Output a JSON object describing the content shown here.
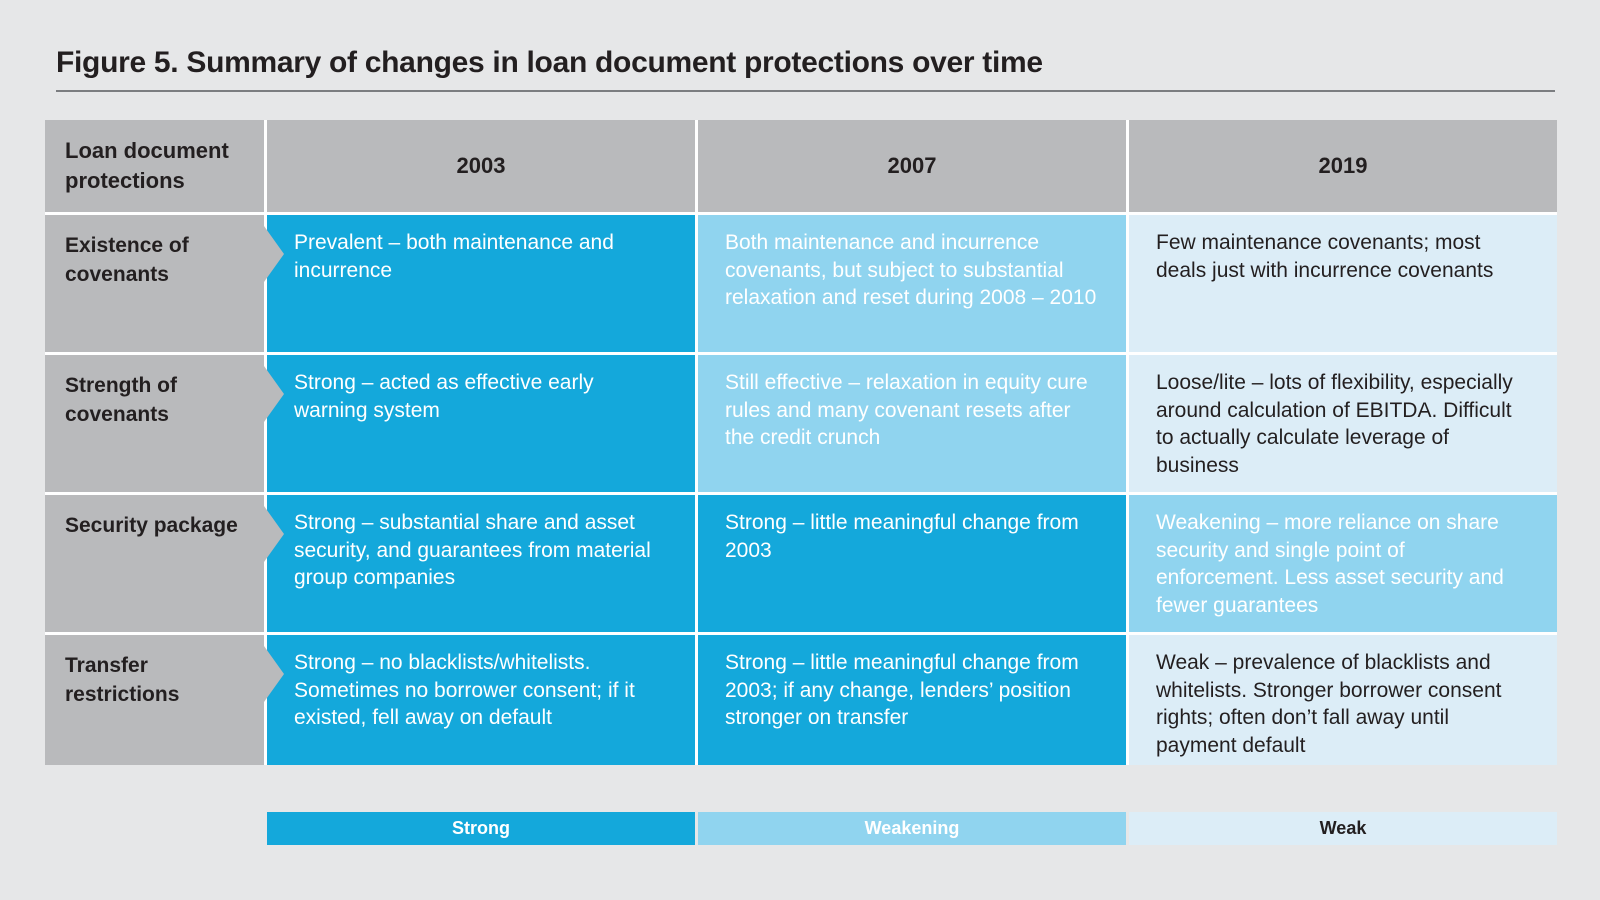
{
  "figure": {
    "title": "Figure 5. Summary of changes in loan document protections over time"
  },
  "table": {
    "corner_header": "Loan document protections",
    "years": [
      "2003",
      "2007",
      "2019"
    ],
    "rows": [
      {
        "label": "Existence of covenants",
        "cells": [
          {
            "level": "strong",
            "text": "Prevalent – both maintenance and incurrence"
          },
          {
            "level": "weakening",
            "text": "Both maintenance and incurrence covenants, but subject to substantial relaxation and reset during 2008 – 2010"
          },
          {
            "level": "weak",
            "text": "Few maintenance covenants; most deals just with incurrence covenants"
          }
        ]
      },
      {
        "label": "Strength of covenants",
        "cells": [
          {
            "level": "strong",
            "text": "Strong – acted as effective early warning system"
          },
          {
            "level": "weakening",
            "text": "Still effective – relaxation in equity cure rules and many covenant resets after the credit crunch"
          },
          {
            "level": "weak",
            "text": "Loose/lite – lots of flexibility, especially around calculation of EBITDA. Difficult to actually calculate leverage of business"
          }
        ]
      },
      {
        "label": "Security package",
        "cells": [
          {
            "level": "strong",
            "text": "Strong – substantial share and asset security, and guarantees from material group companies"
          },
          {
            "level": "strong",
            "text": "Strong – little meaningful change from 2003"
          },
          {
            "level": "weakening",
            "text": "Weakening – more reliance on share security and single point of enforcement. Less asset security and fewer guarantees"
          }
        ]
      },
      {
        "label": "Transfer restrictions",
        "cells": [
          {
            "level": "strong",
            "text": "Strong – no blacklists/whitelists. Sometimes no borrower consent; if it existed, fell away on default"
          },
          {
            "level": "strong",
            "text": "Strong – little meaningful change from 2003; if any change, lenders’ position stronger on transfer"
          },
          {
            "level": "weak",
            "text": "Weak – prevalence of blacklists and whitelists. Stronger borrower consent rights; often don’t fall away until payment default"
          }
        ]
      }
    ],
    "legend": [
      {
        "level": "strong",
        "label": "Strong"
      },
      {
        "level": "weakening",
        "label": "Weakening"
      },
      {
        "level": "weak",
        "label": "Weak"
      }
    ]
  },
  "colors": {
    "strong": "#14a8db",
    "weakening": "#90d4ef",
    "weak": "#dcedf7",
    "header_gray": "#b9babc",
    "page_bg": "#e6e7e8",
    "dark_text": "#231f20"
  }
}
